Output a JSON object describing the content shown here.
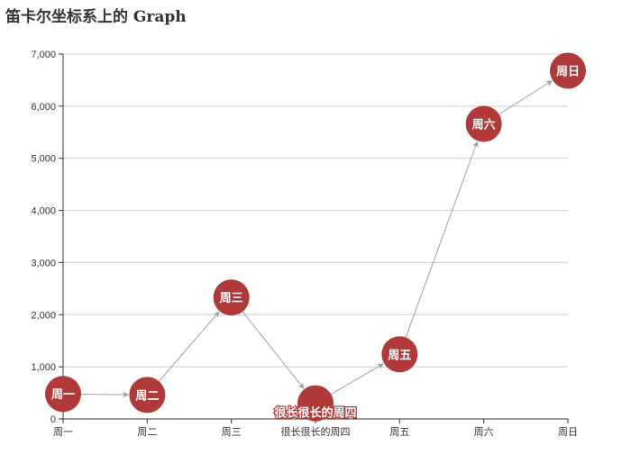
{
  "title": "笛卡尔坐标系上的 Graph",
  "chart_data": {
    "type": "graph",
    "title": "笛卡尔坐标系上的 Graph",
    "categories": [
      "周一",
      "周二",
      "周三",
      "很长很长的周四",
      "周五",
      "周六",
      "周日"
    ],
    "nodes": [
      {
        "category": "周一",
        "label": "周一",
        "value": 480
      },
      {
        "category": "周二",
        "label": "周二",
        "value": 460
      },
      {
        "category": "周三",
        "label": "周三",
        "value": 2330
      },
      {
        "category": "很长很长的周四",
        "label": "很长很长的周四",
        "value": 300
      },
      {
        "category": "周五",
        "label": "周五",
        "value": 1240
      },
      {
        "category": "周六",
        "label": "周六",
        "value": 5660
      },
      {
        "category": "周日",
        "label": "周日",
        "value": 6680
      }
    ],
    "edges": [
      [
        0,
        1
      ],
      [
        1,
        2
      ],
      [
        2,
        3
      ],
      [
        3,
        4
      ],
      [
        4,
        5
      ],
      [
        5,
        6
      ]
    ],
    "ylim": [
      0,
      7000
    ],
    "yticks": [
      0,
      1000,
      2000,
      3000,
      4000,
      5000,
      6000,
      7000
    ],
    "ytick_labels": [
      "0",
      "1,000",
      "2,000",
      "3,000",
      "4,000",
      "5,000",
      "6,000",
      "7,000"
    ],
    "grid": true,
    "colors": {
      "node": "#b03a3a",
      "edge": "#9aa2ad",
      "grid": "#cccccc",
      "axis": "#333333"
    }
  }
}
